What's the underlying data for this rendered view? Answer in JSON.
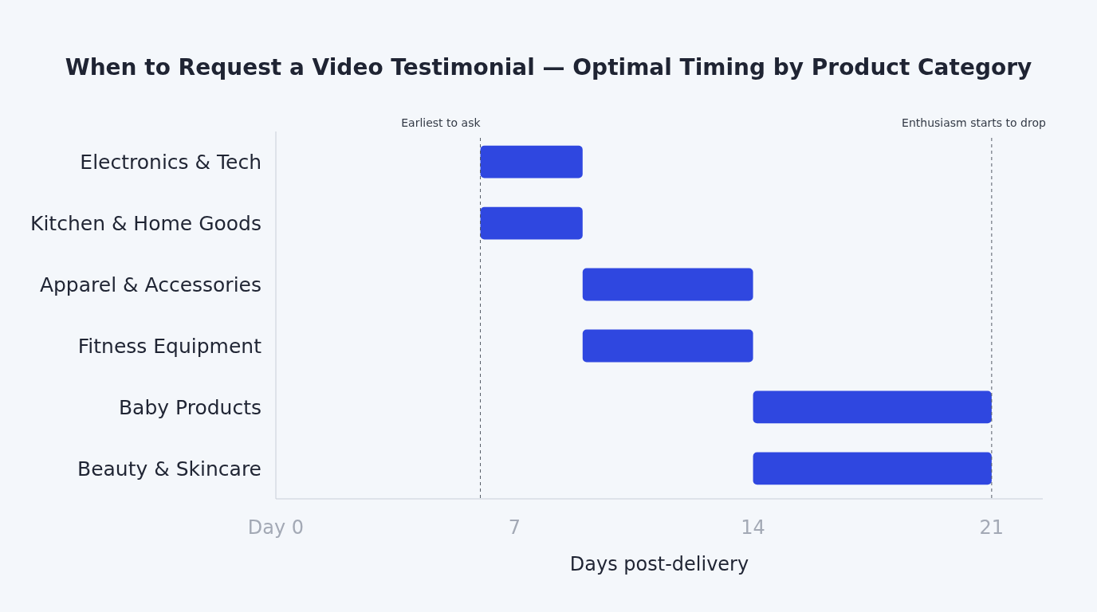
{
  "chart_data": {
    "type": "bar",
    "orientation": "horizontal",
    "title": "When to Request a Video Testimonial — Optimal Timing by Product Category",
    "xlabel": "Days post-delivery",
    "categories": [
      "Electronics & Tech",
      "Kitchen & Home Goods",
      "Apparel & Accessories",
      "Fitness Equipment",
      "Baby Products",
      "Beauty & Skincare"
    ],
    "base": [
      6,
      6,
      9,
      9,
      14,
      14
    ],
    "values": [
      3,
      3,
      5,
      5,
      7,
      7
    ],
    "color": "#2f47e0",
    "xlim": [
      0,
      22.5
    ],
    "xticks": [
      {
        "value": 0,
        "label": "Day 0"
      },
      7,
      14,
      21
    ],
    "ref_lines": [
      {
        "axis": "x",
        "value": 6,
        "label": "Earliest to ask",
        "line_style": "dashed",
        "color": "#555b66"
      },
      {
        "axis": "x",
        "value": 21,
        "label": "Enthusiasm starts to drop",
        "line_style": "dashed",
        "color": "#555b66"
      }
    ],
    "grid": false
  }
}
